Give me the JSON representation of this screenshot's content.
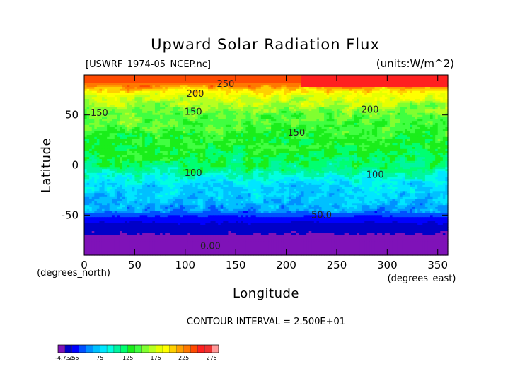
{
  "chart_data": {
    "type": "heatmap",
    "title": "Upward Solar Radiation Flux",
    "file_label": "[USWRF_1974-05_NCEP.nc]",
    "units_label": "(units:W/m^2)",
    "xlabel": "Longitude",
    "ylabel": "Latitude",
    "x_unit_label": "(degrees_east)",
    "y_unit_label": "(degrees_north)",
    "xlim": [
      0,
      360
    ],
    "ylim": [
      -90,
      90
    ],
    "x_ticks": [
      0,
      50,
      100,
      150,
      200,
      250,
      300,
      350
    ],
    "y_ticks": [
      -50,
      0,
      50
    ],
    "contour_interval_text": "CONTOUR INTERVAL = 2.500E+01",
    "contour_labels": [
      {
        "text": "250",
        "lon": 140,
        "lat": 81
      },
      {
        "text": "200",
        "lon": 110,
        "lat": 71
      },
      {
        "text": "200",
        "lon": 283,
        "lat": 55
      },
      {
        "text": "150",
        "lon": 15,
        "lat": 52
      },
      {
        "text": "150",
        "lon": 108,
        "lat": 53
      },
      {
        "text": "150",
        "lon": 210,
        "lat": 32
      },
      {
        "text": "100",
        "lon": 108,
        "lat": -8
      },
      {
        "text": "100",
        "lon": 288,
        "lat": -10
      },
      {
        "text": "50.0",
        "lon": 235,
        "lat": -50
      },
      {
        "text": "0.00",
        "lon": 125,
        "lat": -81
      }
    ],
    "latitude_profile": {
      "lat": [
        -90,
        -80,
        -75,
        -60,
        -50,
        -45,
        -35,
        -20,
        -10,
        0,
        10,
        20,
        35,
        50,
        60,
        70,
        75,
        80,
        85,
        90
      ],
      "value": [
        0,
        0,
        8,
        20,
        40,
        60,
        70,
        80,
        100,
        120,
        125,
        130,
        140,
        150,
        165,
        185,
        205,
        230,
        245,
        250
      ]
    },
    "colorbar": {
      "tick_labels": [
        "-4.73e-5",
        "25",
        "75",
        "125",
        "175",
        "225",
        "275"
      ],
      "tick_values": [
        0,
        25,
        75,
        125,
        175,
        225,
        275
      ],
      "range": [
        0,
        287.5
      ],
      "levels": [
        {
          "value": 0,
          "color": "#7f12b8"
        },
        {
          "value": 12.5,
          "color": "#0000c8"
        },
        {
          "value": 25,
          "color": "#0000ff"
        },
        {
          "value": 37.5,
          "color": "#0050ff"
        },
        {
          "value": 50,
          "color": "#0090ff"
        },
        {
          "value": 62.5,
          "color": "#00c0ff"
        },
        {
          "value": 75,
          "color": "#00e6ff"
        },
        {
          "value": 87.5,
          "color": "#00ffe0"
        },
        {
          "value": 100,
          "color": "#00f5a0"
        },
        {
          "value": 112.5,
          "color": "#00ff70"
        },
        {
          "value": 125,
          "color": "#1aee1a"
        },
        {
          "value": 137.5,
          "color": "#40ff40"
        },
        {
          "value": 150,
          "color": "#80ff30"
        },
        {
          "value": 162.5,
          "color": "#b8ff20"
        },
        {
          "value": 175,
          "color": "#e6ff00"
        },
        {
          "value": 187.5,
          "color": "#ffff00"
        },
        {
          "value": 200,
          "color": "#ffd000"
        },
        {
          "value": 212.5,
          "color": "#ffa000"
        },
        {
          "value": 225,
          "color": "#ff7800"
        },
        {
          "value": 237.5,
          "color": "#ff4a00"
        },
        {
          "value": 250,
          "color": "#ff2020"
        },
        {
          "value": 262.5,
          "color": "#f03030"
        },
        {
          "value": 275,
          "color": "#ff9898"
        }
      ]
    }
  }
}
